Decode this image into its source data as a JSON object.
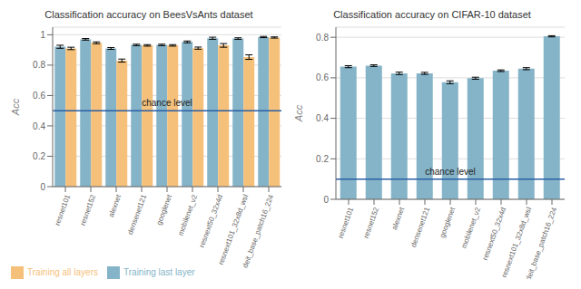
{
  "chart_data": [
    {
      "type": "bar",
      "title": "Classification accuracy on BeesVsAnts dataset",
      "categories": [
        "resnet101",
        "resnet152",
        "alexnet",
        "densenet121",
        "googlenet",
        "mobilenet_v2",
        "resnext50_32x4d",
        "resnext101_32x8d_wsl",
        "deit_base_patch16_224"
      ],
      "series": [
        {
          "name": "Training last layer",
          "color": "#85b4c8",
          "values": [
            0.921,
            0.97,
            0.91,
            0.933,
            0.933,
            0.953,
            0.977,
            0.975,
            0.985
          ],
          "errors": [
            0.01,
            0.005,
            0.006,
            0.005,
            0.005,
            0.006,
            0.007,
            0.005,
            0.004
          ]
        },
        {
          "name": "Training all layers",
          "color": "#f5c07a",
          "values": [
            0.91,
            0.947,
            0.83,
            0.93,
            0.93,
            0.912,
            0.93,
            0.853,
            0.982
          ],
          "errors": [
            0.008,
            0.006,
            0.01,
            0.005,
            0.005,
            0.007,
            0.012,
            0.015,
            0.004
          ]
        }
      ],
      "ylabel": "Acc",
      "ylim": [
        0.0,
        1.05
      ],
      "yticks": [
        0,
        0.2,
        0.4,
        0.6,
        0.8,
        1
      ],
      "grid": true,
      "legend": "lower left",
      "reference_line": {
        "y": 0.5,
        "label": "chance level",
        "color": "#2a5fa5"
      }
    },
    {
      "type": "bar",
      "title": "Classification accuracy on CIFAR-10 dataset",
      "categories": [
        "resnet101",
        "resnet152",
        "alexnet",
        "densenet121",
        "googlenet",
        "mobilenet_v2",
        "resnext50_32x4d",
        "resnext101_32x8d_wsl",
        "deit_base_patch16_224"
      ],
      "series": [
        {
          "color": "#85b4c8",
          "values": [
            0.655,
            0.66,
            0.622,
            0.622,
            0.578,
            0.598,
            0.635,
            0.645,
            0.805
          ],
          "errors": [
            0.005,
            0.004,
            0.006,
            0.005,
            0.007,
            0.005,
            0.004,
            0.005,
            0.003
          ]
        }
      ],
      "ylabel": "Acc",
      "ylim": [
        0.0,
        0.85
      ],
      "yticks": [
        0,
        0.2,
        0.4,
        0.6,
        0.8
      ],
      "grid": true,
      "reference_line": {
        "y": 0.1,
        "label": "chance level",
        "color": "#2a5fa5"
      }
    }
  ]
}
